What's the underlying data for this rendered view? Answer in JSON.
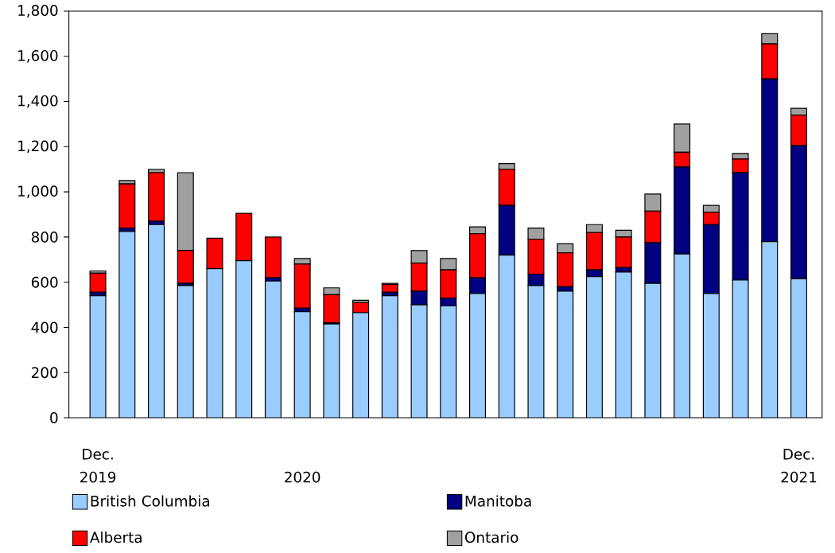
{
  "chart_data": {
    "type": "bar",
    "stacked": true,
    "grid": false,
    "legend": "bottom",
    "categories": [
      "Dec. 2019",
      null,
      null,
      null,
      null,
      null,
      null,
      "2020",
      null,
      null,
      null,
      null,
      null,
      null,
      null,
      null,
      null,
      null,
      null,
      null,
      null,
      null,
      null,
      null,
      "Dec. 2021"
    ],
    "series": [
      {
        "name": "British Columbia",
        "color": "#99ccff",
        "values": [
          540,
          825,
          855,
          585,
          660,
          695,
          605,
          470,
          415,
          465,
          540,
          500,
          495,
          550,
          720,
          585,
          560,
          625,
          645,
          595,
          725,
          550,
          610,
          780,
          615
        ]
      },
      {
        "name": "Manitoba",
        "color": "#000080",
        "values": [
          15,
          15,
          15,
          10,
          null,
          null,
          15,
          15,
          5,
          null,
          15,
          60,
          35,
          70,
          220,
          50,
          20,
          30,
          20,
          180,
          385,
          305,
          475,
          720,
          590
        ]
      },
      {
        "name": "Alberta",
        "color": "#ff0000",
        "values": [
          85,
          195,
          215,
          145,
          135,
          210,
          180,
          195,
          125,
          45,
          35,
          125,
          125,
          195,
          160,
          155,
          150,
          165,
          135,
          140,
          65,
          55,
          60,
          155,
          135
        ]
      },
      {
        "name": "Ontario",
        "color": "#a0a0a0",
        "values": [
          10,
          15,
          15,
          345,
          null,
          null,
          null,
          25,
          30,
          10,
          5,
          55,
          50,
          30,
          25,
          50,
          40,
          35,
          30,
          75,
          125,
          30,
          25,
          45,
          30
        ]
      }
    ],
    "ylim": [
      0,
      1800
    ],
    "yticks": [
      0,
      200,
      400,
      600,
      800,
      {
        "value": 1000,
        "label": "1,000"
      },
      {
        "value": 1200,
        "label": "1,200"
      },
      {
        "value": 1400,
        "label": "1,400"
      },
      {
        "value": 1600,
        "label": "1,600"
      },
      {
        "value": 1800,
        "label": "1,800"
      }
    ]
  }
}
